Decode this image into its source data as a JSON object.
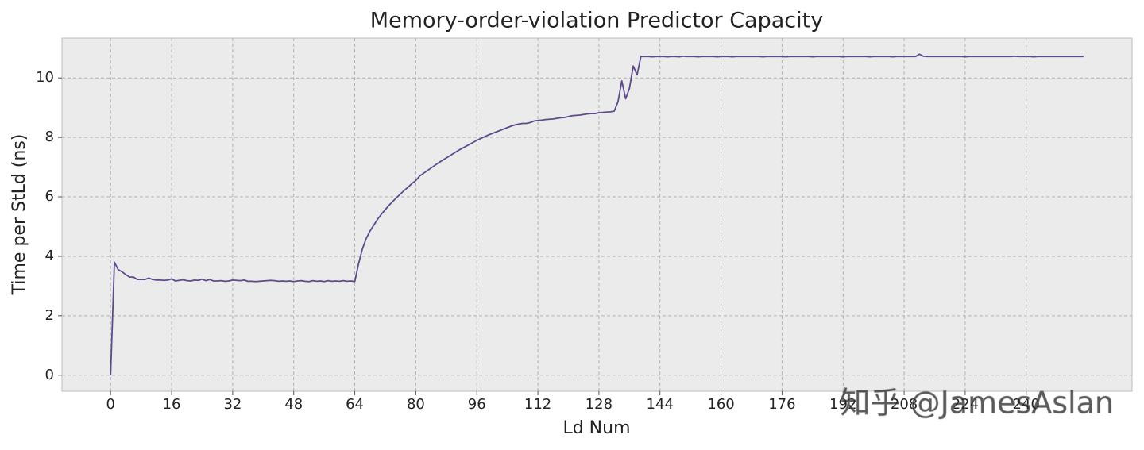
{
  "chart_data": {
    "type": "line",
    "title": "Memory-order-violation Predictor Capacity",
    "x_label": "Ld Num",
    "y_label": "Time per StLd (ns)",
    "watermark": "知乎 @JamesAslan",
    "color": "#5d4b8c",
    "grid": true,
    "xlim": [
      -12.75,
      267.75
    ],
    "ylim": [
      -0.54,
      11.34
    ],
    "xticks": [
      0,
      16,
      32,
      48,
      64,
      80,
      96,
      112,
      128,
      144,
      160,
      176,
      192,
      208,
      224,
      240
    ],
    "yticks": [
      0,
      2,
      4,
      6,
      8,
      10
    ],
    "x": [
      0,
      1,
      2,
      3,
      4,
      5,
      6,
      7,
      8,
      9,
      10,
      11,
      12,
      13,
      14,
      15,
      16,
      17,
      18,
      19,
      20,
      21,
      22,
      23,
      24,
      25,
      26,
      27,
      28,
      29,
      30,
      31,
      32,
      33,
      34,
      35,
      36,
      37,
      38,
      39,
      40,
      41,
      42,
      43,
      44,
      45,
      46,
      47,
      48,
      49,
      50,
      51,
      52,
      53,
      54,
      55,
      56,
      57,
      58,
      59,
      60,
      61,
      62,
      63,
      64,
      65,
      66,
      67,
      68,
      69,
      70,
      71,
      72,
      73,
      74,
      75,
      76,
      77,
      78,
      79,
      80,
      81,
      82,
      83,
      84,
      85,
      86,
      87,
      88,
      89,
      90,
      91,
      92,
      93,
      94,
      95,
      96,
      97,
      98,
      99,
      100,
      101,
      102,
      103,
      104,
      105,
      106,
      107,
      108,
      109,
      110,
      111,
      112,
      113,
      114,
      115,
      116,
      117,
      118,
      119,
      120,
      121,
      122,
      123,
      124,
      125,
      126,
      127,
      128,
      129,
      130,
      131,
      132,
      133,
      134,
      135,
      136,
      137,
      138,
      139,
      140,
      141,
      142,
      143,
      144,
      145,
      146,
      147,
      148,
      149,
      150,
      151,
      152,
      153,
      154,
      155,
      156,
      157,
      158,
      159,
      160,
      161,
      162,
      163,
      164,
      165,
      166,
      167,
      168,
      169,
      170,
      171,
      172,
      173,
      174,
      175,
      176,
      177,
      178,
      179,
      180,
      181,
      182,
      183,
      184,
      185,
      186,
      187,
      188,
      189,
      190,
      191,
      192,
      193,
      194,
      195,
      196,
      197,
      198,
      199,
      200,
      201,
      202,
      203,
      204,
      205,
      206,
      207,
      208,
      209,
      210,
      211,
      212,
      213,
      214,
      215,
      216,
      217,
      218,
      219,
      220,
      221,
      222,
      223,
      224,
      225,
      226,
      227,
      228,
      229,
      230,
      231,
      232,
      233,
      234,
      235,
      236,
      237,
      238,
      239,
      240,
      241,
      242,
      243,
      244,
      245,
      246,
      247,
      248,
      249,
      250,
      251,
      252,
      253,
      254,
      255
    ],
    "values": [
      0,
      3.8,
      3.55,
      3.48,
      3.38,
      3.3,
      3.3,
      3.22,
      3.22,
      3.22,
      3.27,
      3.22,
      3.2,
      3.2,
      3.19,
      3.2,
      3.24,
      3.17,
      3.19,
      3.21,
      3.18,
      3.17,
      3.2,
      3.19,
      3.23,
      3.18,
      3.22,
      3.17,
      3.17,
      3.18,
      3.16,
      3.17,
      3.2,
      3.19,
      3.18,
      3.2,
      3.16,
      3.16,
      3.15,
      3.16,
      3.17,
      3.18,
      3.19,
      3.18,
      3.16,
      3.17,
      3.16,
      3.17,
      3.15,
      3.17,
      3.18,
      3.16,
      3.15,
      3.18,
      3.16,
      3.17,
      3.15,
      3.18,
      3.16,
      3.17,
      3.16,
      3.18,
      3.16,
      3.17,
      3.15,
      3.75,
      4.25,
      4.6,
      4.85,
      5.05,
      5.25,
      5.42,
      5.57,
      5.72,
      5.85,
      5.98,
      6.1,
      6.22,
      6.33,
      6.45,
      6.55,
      6.7,
      6.79,
      6.88,
      6.97,
      7.06,
      7.15,
      7.23,
      7.31,
      7.39,
      7.47,
      7.55,
      7.62,
      7.69,
      7.76,
      7.83,
      7.9,
      7.96,
      8.02,
      8.08,
      8.13,
      8.18,
      8.23,
      8.28,
      8.33,
      8.38,
      8.42,
      8.45,
      8.47,
      8.47,
      8.5,
      8.55,
      8.57,
      8.58,
      8.6,
      8.61,
      8.62,
      8.64,
      8.66,
      8.67,
      8.7,
      8.73,
      8.74,
      8.75,
      8.77,
      8.79,
      8.8,
      8.8,
      8.83,
      8.84,
      8.85,
      8.86,
      8.88,
      9.2,
      9.9,
      9.3,
      9.65,
      10.4,
      10.1,
      10.72,
      10.72,
      10.72,
      10.71,
      10.72,
      10.72,
      10.72,
      10.71,
      10.72,
      10.72,
      10.71,
      10.73,
      10.72,
      10.72,
      10.72,
      10.71,
      10.72,
      10.72,
      10.72,
      10.72,
      10.71,
      10.72,
      10.72,
      10.72,
      10.71,
      10.72,
      10.72,
      10.72,
      10.72,
      10.72,
      10.72,
      10.72,
      10.71,
      10.72,
      10.72,
      10.72,
      10.72,
      10.72,
      10.71,
      10.72,
      10.72,
      10.72,
      10.72,
      10.72,
      10.72,
      10.71,
      10.72,
      10.72,
      10.72,
      10.72,
      10.72,
      10.72,
      10.72,
      10.71,
      10.72,
      10.72,
      10.72,
      10.72,
      10.72,
      10.72,
      10.71,
      10.72,
      10.72,
      10.72,
      10.72,
      10.72,
      10.71,
      10.72,
      10.72,
      10.72,
      10.72,
      10.72,
      10.72,
      10.8,
      10.73,
      10.72,
      10.72,
      10.72,
      10.72,
      10.72,
      10.72,
      10.72,
      10.72,
      10.72,
      10.72,
      10.71,
      10.72,
      10.72,
      10.72,
      10.72,
      10.72,
      10.72,
      10.72,
      10.72,
      10.72,
      10.72,
      10.72,
      10.72,
      10.73,
      10.72,
      10.72,
      10.72,
      10.72,
      10.71,
      10.72,
      10.72,
      10.72,
      10.72,
      10.72,
      10.72,
      10.72,
      10.72,
      10.72,
      10.72,
      10.72,
      10.72,
      10.72
    ]
  }
}
